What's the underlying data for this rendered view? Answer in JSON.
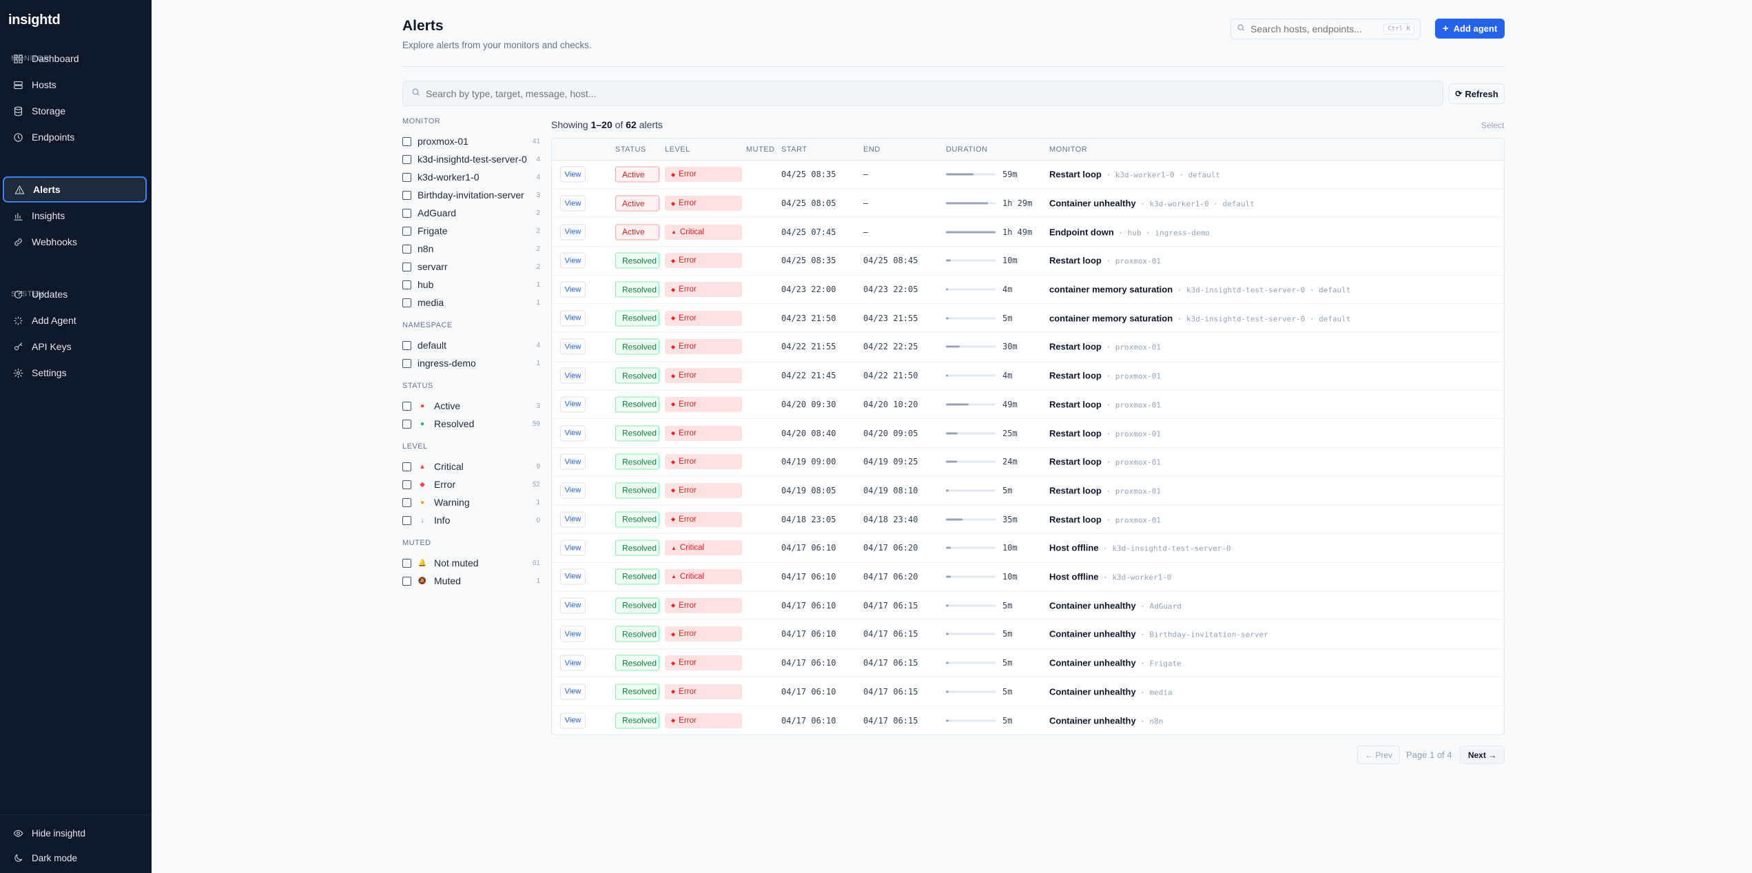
{
  "brand": "insightd",
  "sidebar": {
    "sections": [
      {
        "label": "MONITOR",
        "items": [
          {
            "label": "Dashboard",
            "icon": "dashboard-icon"
          },
          {
            "label": "Hosts",
            "icon": "server-icon"
          },
          {
            "label": "Storage",
            "icon": "database-icon"
          },
          {
            "label": "Endpoints",
            "icon": "clock-icon"
          }
        ]
      },
      {
        "label": "RESPOND",
        "items": [
          {
            "label": "Alerts",
            "icon": "alert-triangle-icon",
            "active": true
          },
          {
            "label": "Insights",
            "icon": "bar-chart-icon"
          },
          {
            "label": "Webhooks",
            "icon": "link-icon"
          }
        ]
      },
      {
        "label": "SYSTEM",
        "items": [
          {
            "label": "Updates",
            "icon": "refresh-icon"
          },
          {
            "label": "Add Agent",
            "icon": "loader-icon"
          },
          {
            "label": "API Keys",
            "icon": "key-icon"
          },
          {
            "label": "Settings",
            "icon": "gear-icon"
          }
        ]
      }
    ],
    "footer": [
      {
        "label": "Hide insightd",
        "icon": "eye-icon"
      },
      {
        "label": "Dark mode",
        "icon": "moon-icon"
      }
    ]
  },
  "header": {
    "title": "Alerts",
    "subtitle": "Explore alerts from your monitors and checks.",
    "search_placeholder": "Search hosts, endpoints...",
    "shortcut": "Ctrl K",
    "add_agent_label": "Add agent"
  },
  "main_search_placeholder": "Search by type, target, message, host...",
  "refresh_label": "Refresh",
  "filters": [
    {
      "heading": "MONITOR",
      "options": [
        {
          "label": "proxmox-01",
          "count": "41"
        },
        {
          "label": "k3d-insightd-test-server-0",
          "count": "4"
        },
        {
          "label": "k3d-worker1-0",
          "count": "4"
        },
        {
          "label": "Birthday-invitation-server",
          "count": "3"
        },
        {
          "label": "AdGuard",
          "count": "2"
        },
        {
          "label": "Frigate",
          "count": "2"
        },
        {
          "label": "n8n",
          "count": "2"
        },
        {
          "label": "servarr",
          "count": "2"
        },
        {
          "label": "hub",
          "count": "1"
        },
        {
          "label": "media",
          "count": "1"
        }
      ]
    },
    {
      "heading": "NAMESPACE",
      "options": [
        {
          "label": "default",
          "count": "4"
        },
        {
          "label": "ingress-demo",
          "count": "1"
        }
      ]
    },
    {
      "heading": "STATUS",
      "options": [
        {
          "label": "Active",
          "count": "3",
          "marker": "●",
          "marker_color": "#ef4444"
        },
        {
          "label": "Resolved",
          "count": "59",
          "marker": "●",
          "marker_color": "#10b981"
        }
      ]
    },
    {
      "heading": "LEVEL",
      "options": [
        {
          "label": "Critical",
          "count": "9",
          "marker": "▲",
          "marker_color": "#ef4444"
        },
        {
          "label": "Error",
          "count": "52",
          "marker": "◆",
          "marker_color": "#ef4444"
        },
        {
          "label": "Warning",
          "count": "1",
          "marker": "●",
          "marker_color": "#f59e0b"
        },
        {
          "label": "Info",
          "count": "0",
          "marker": "↓",
          "marker_color": "#3b82f6"
        }
      ]
    },
    {
      "heading": "MUTED",
      "options": [
        {
          "label": "Not muted",
          "count": "61",
          "marker": "🔔",
          "marker_color": "#f59e0b"
        },
        {
          "label": "Muted",
          "count": "1",
          "marker": "🔕",
          "marker_color": "#f97316"
        }
      ]
    }
  ],
  "showing": {
    "prefix": "Showing",
    "range": "1–20",
    "of": "of",
    "total": "62",
    "suffix": "alerts"
  },
  "select_label": "Select",
  "columns": {
    "status": "STATUS",
    "level": "LEVEL",
    "muted": "MUTED",
    "start": "START",
    "end": "END",
    "duration": "DURATION",
    "monitor": "MONITOR"
  },
  "view_label": "View",
  "rows": [
    {
      "status": "Active",
      "level": "Error",
      "start": "04/25 08:35",
      "end": "—",
      "duration": "59m",
      "bar": 0.55,
      "title": "Restart loop",
      "tags": [
        "k3d-worker1-0",
        "default"
      ]
    },
    {
      "status": "Active",
      "level": "Error",
      "start": "04/25 08:05",
      "end": "—",
      "duration": "1h 29m",
      "bar": 0.85,
      "title": "Container unhealthy",
      "tags": [
        "k3d-worker1-0",
        "default"
      ]
    },
    {
      "status": "Active",
      "level": "Critical",
      "start": "04/25 07:45",
      "end": "—",
      "duration": "1h 49m",
      "bar": 1.0,
      "title": "Endpoint down",
      "tags": [
        "hub",
        "ingress-demo"
      ]
    },
    {
      "status": "Resolved",
      "level": "Error",
      "start": "04/25 08:35",
      "end": "04/25 08:45",
      "duration": "10m",
      "bar": 0.1,
      "title": "Restart loop",
      "tags": [
        "proxmox-01"
      ]
    },
    {
      "status": "Resolved",
      "level": "Error",
      "start": "04/23 22:00",
      "end": "04/23 22:05",
      "duration": "4m",
      "bar": 0.04,
      "title": "container memory saturation",
      "tags": [
        "k3d-insightd-test-server-0",
        "default"
      ]
    },
    {
      "status": "Resolved",
      "level": "Error",
      "start": "04/23 21:50",
      "end": "04/23 21:55",
      "duration": "5m",
      "bar": 0.05,
      "title": "container memory saturation",
      "tags": [
        "k3d-insightd-test-server-0",
        "default"
      ]
    },
    {
      "status": "Resolved",
      "level": "Error",
      "start": "04/22 21:55",
      "end": "04/22 22:25",
      "duration": "30m",
      "bar": 0.28,
      "title": "Restart loop",
      "tags": [
        "proxmox-01"
      ]
    },
    {
      "status": "Resolved",
      "level": "Error",
      "start": "04/22 21:45",
      "end": "04/22 21:50",
      "duration": "4m",
      "bar": 0.04,
      "title": "Restart loop",
      "tags": [
        "proxmox-01"
      ]
    },
    {
      "status": "Resolved",
      "level": "Error",
      "start": "04/20 09:30",
      "end": "04/20 10:20",
      "duration": "49m",
      "bar": 0.46,
      "title": "Restart loop",
      "tags": [
        "proxmox-01"
      ]
    },
    {
      "status": "Resolved",
      "level": "Error",
      "start": "04/20 08:40",
      "end": "04/20 09:05",
      "duration": "25m",
      "bar": 0.23,
      "title": "Restart loop",
      "tags": [
        "proxmox-01"
      ]
    },
    {
      "status": "Resolved",
      "level": "Error",
      "start": "04/19 09:00",
      "end": "04/19 09:25",
      "duration": "24m",
      "bar": 0.22,
      "title": "Restart loop",
      "tags": [
        "proxmox-01"
      ]
    },
    {
      "status": "Resolved",
      "level": "Error",
      "start": "04/19 08:05",
      "end": "04/19 08:10",
      "duration": "5m",
      "bar": 0.05,
      "title": "Restart loop",
      "tags": [
        "proxmox-01"
      ]
    },
    {
      "status": "Resolved",
      "level": "Error",
      "start": "04/18 23:05",
      "end": "04/18 23:40",
      "duration": "35m",
      "bar": 0.33,
      "title": "Restart loop",
      "tags": [
        "proxmox-01"
      ]
    },
    {
      "status": "Resolved",
      "level": "Critical",
      "start": "04/17 06:10",
      "end": "04/17 06:20",
      "duration": "10m",
      "bar": 0.1,
      "title": "Host offline",
      "tags": [
        "k3d-insightd-test-server-0"
      ]
    },
    {
      "status": "Resolved",
      "level": "Critical",
      "start": "04/17 06:10",
      "end": "04/17 06:20",
      "duration": "10m",
      "bar": 0.1,
      "title": "Host offline",
      "tags": [
        "k3d-worker1-0"
      ]
    },
    {
      "status": "Resolved",
      "level": "Error",
      "start": "04/17 06:10",
      "end": "04/17 06:15",
      "duration": "5m",
      "bar": 0.05,
      "title": "Container unhealthy",
      "tags": [
        "AdGuard"
      ]
    },
    {
      "status": "Resolved",
      "level": "Error",
      "start": "04/17 06:10",
      "end": "04/17 06:15",
      "duration": "5m",
      "bar": 0.05,
      "title": "Container unhealthy",
      "tags": [
        "Birthday-invitation-server"
      ]
    },
    {
      "status": "Resolved",
      "level": "Error",
      "start": "04/17 06:10",
      "end": "04/17 06:15",
      "duration": "5m",
      "bar": 0.05,
      "title": "Container unhealthy",
      "tags": [
        "Frigate"
      ]
    },
    {
      "status": "Resolved",
      "level": "Error",
      "start": "04/17 06:10",
      "end": "04/17 06:15",
      "duration": "5m",
      "bar": 0.05,
      "title": "Container unhealthy",
      "tags": [
        "media"
      ]
    },
    {
      "status": "Resolved",
      "level": "Error",
      "start": "04/17 06:10",
      "end": "04/17 06:15",
      "duration": "5m",
      "bar": 0.05,
      "title": "Container unhealthy",
      "tags": [
        "n8n"
      ]
    }
  ],
  "pagination": {
    "prev": "← Prev",
    "info": "Page 1 of 4",
    "next": "Next →"
  },
  "colors": {
    "sidebar_bg": "#0f172a",
    "accent": "#2563eb",
    "active_border": "#3b82f6",
    "error": "#dc2626",
    "resolved": "#15803d"
  }
}
